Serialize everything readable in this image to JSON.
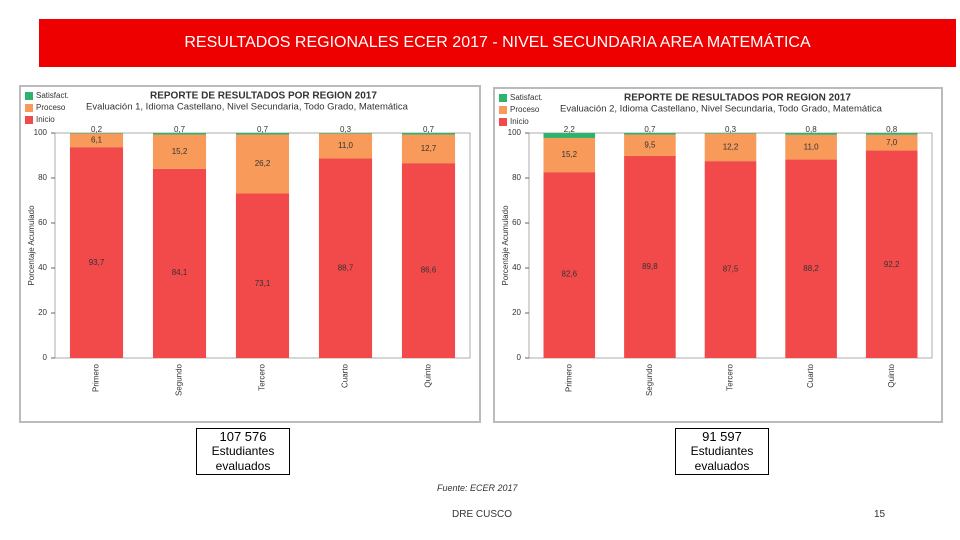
{
  "slide": {
    "title": "RESULTADOS REGIONALES ECER 2017 - NIVEL SECUNDARIA AREA MATEMÁTICA",
    "boxes": [
      {
        "value": "107 576",
        "label": "Estudiantes evaluados"
      },
      {
        "value": "91 597",
        "label": "Estudiantes evaluados"
      }
    ],
    "source": "Fuente: ECER 2017",
    "footer": "DRE CUSCO",
    "page": "15"
  },
  "chart_data": [
    {
      "type": "bar",
      "stacked": true,
      "title": "REPORTE DE RESULTADOS POR REGION 2017",
      "subtitle": "Evaluación 1, Idioma Castellano, Nivel Secundaria, Todo Grado, Matemática",
      "y_label": "Porcentaje Acumulado",
      "categories": [
        "Primero",
        "Segundo",
        "Tercero",
        "Cuarto",
        "Quinto"
      ],
      "series": [
        {
          "name": "Inicio",
          "color": "#f24a4a",
          "values": [
            93.7,
            84.1,
            73.1,
            88.7,
            86.6
          ],
          "value_labels": [
            "93,7",
            "84,1",
            "73,1",
            "88,7",
            "86,6"
          ]
        },
        {
          "name": "Proceso",
          "color": "#f79a5a",
          "values": [
            6.1,
            15.2,
            26.2,
            11.0,
            12.7
          ],
          "value_labels": [
            "6,1",
            "15,2",
            "26,2",
            "11,0",
            "12,7"
          ]
        },
        {
          "name": "Satisfact.",
          "color": "#2db36b",
          "values": [
            0.2,
            0.7,
            0.7,
            0.3,
            0.7
          ],
          "value_labels": [
            "0,2",
            "0,7",
            "0,7",
            "0,3",
            "0,7"
          ]
        }
      ],
      "ylim": [
        0,
        100
      ],
      "yticks": [
        0,
        20,
        40,
        60,
        80,
        100
      ],
      "grid": false
    },
    {
      "type": "bar",
      "stacked": true,
      "title": "REPORTE DE RESULTADOS POR REGION 2017",
      "subtitle": "Evaluación 2, Idioma Castellano, Nivel Secundaria, Todo Grado, Matemática",
      "y_label": "Porcentaje Acumulado",
      "categories": [
        "Primero",
        "Segundo",
        "Tercero",
        "Cuarto",
        "Quinto"
      ],
      "series": [
        {
          "name": "Inicio",
          "color": "#f24a4a",
          "values": [
            82.6,
            89.8,
            87.5,
            88.2,
            92.2
          ],
          "value_labels": [
            "82,6",
            "89,8",
            "87,5",
            "88,2",
            "92,2"
          ]
        },
        {
          "name": "Proceso",
          "color": "#f79a5a",
          "values": [
            15.2,
            9.5,
            12.2,
            11.0,
            7.0
          ],
          "value_labels": [
            "15,2",
            "9,5",
            "12,2",
            "11,0",
            "7,0"
          ]
        },
        {
          "name": "Satisfact.",
          "color": "#2db36b",
          "values": [
            2.2,
            0.7,
            0.3,
            0.8,
            0.8
          ],
          "value_labels": [
            "2,2",
            "0,7",
            "0,3",
            "0,8",
            "0,8"
          ]
        }
      ],
      "ylim": [
        0,
        100
      ],
      "yticks": [
        0,
        20,
        40,
        60,
        80,
        100
      ],
      "grid": false
    }
  ]
}
